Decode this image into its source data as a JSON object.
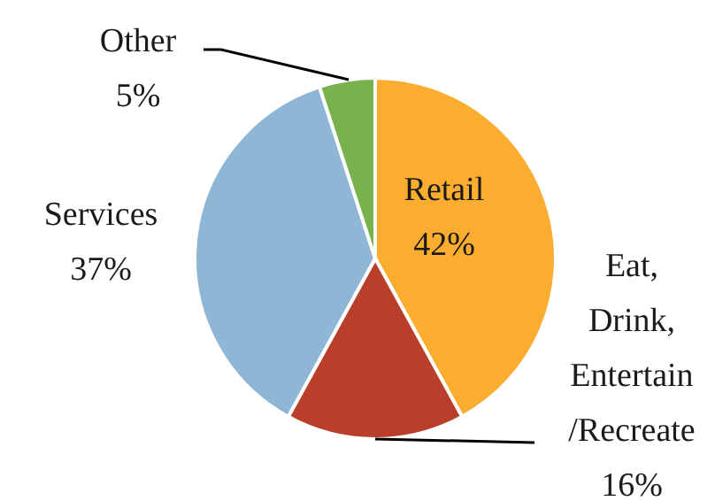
{
  "chart_data": {
    "type": "pie",
    "categories": [
      "Retail",
      "Eat, Drink, Entertain /Recreate",
      "Services",
      "Other"
    ],
    "values": [
      42,
      16,
      37,
      5
    ],
    "colors": [
      "#fbad2f",
      "#b93f2b",
      "#8fb6d4",
      "#77b24d"
    ],
    "value_labels": [
      "42%",
      "16%",
      "37%",
      "5%"
    ]
  }
}
